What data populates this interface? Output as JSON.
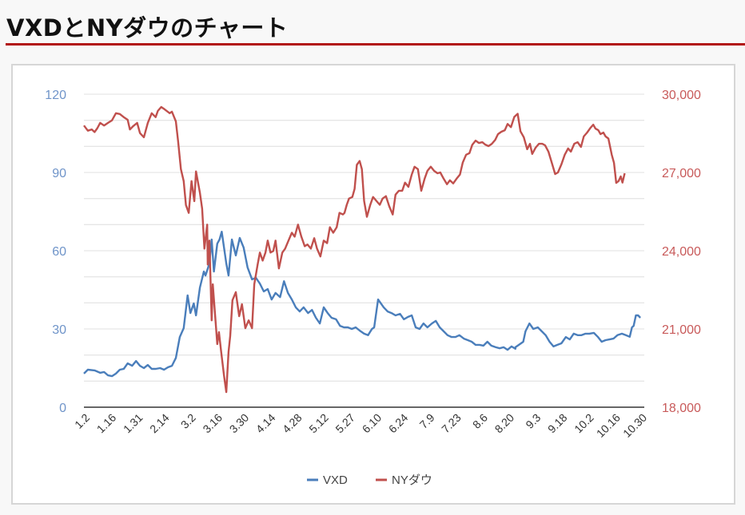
{
  "page": {
    "title": "VXDとNYダウのチャート",
    "accent_color": "#b21414"
  },
  "chart_data": {
    "type": "line",
    "title": "",
    "xlabel": "",
    "ylabel_left": "",
    "ylabel_right": "",
    "x_tick_labels": [
      "1.2",
      "1.16",
      "1.31",
      "2.14",
      "3.2",
      "3.16",
      "3.30",
      "4.14",
      "4.28",
      "5.12",
      "5.27",
      "6.10",
      "6.24",
      "7.9",
      "7.23",
      "8.6",
      "8.20",
      "9.3",
      "9.18",
      "10.2",
      "10.16",
      "10.30"
    ],
    "y_left": {
      "ticks": [
        0,
        30,
        60,
        90,
        120
      ],
      "labels": [
        "0",
        "30",
        "60",
        "90",
        "120"
      ],
      "range": [
        0,
        120
      ],
      "color": "#6f94c9"
    },
    "y_right": {
      "ticks": [
        18000,
        21000,
        24000,
        27000,
        30000
      ],
      "labels": [
        "18,000",
        "21,000",
        "24,000",
        "27,000",
        "30,000"
      ],
      "range": [
        18000,
        30000
      ],
      "color": "#c85a5a"
    },
    "grid": {
      "horizontal": true,
      "minor_step_left": 10,
      "color": "#e6e6e6"
    },
    "legend": {
      "position": "bottom",
      "entries": [
        "VXD",
        "NYダウ"
      ]
    },
    "series": [
      {
        "name": "VXD",
        "axis": "left",
        "color": "#4a7ebb",
        "x_frac": [
          0,
          0.007,
          0.019,
          0.029,
          0.036,
          0.043,
          0.05,
          0.057,
          0.064,
          0.071,
          0.078,
          0.086,
          0.093,
          0.1,
          0.107,
          0.114,
          0.121,
          0.128,
          0.136,
          0.143,
          0.15,
          0.157,
          0.164,
          0.171,
          0.178,
          0.185,
          0.19,
          0.19,
          0.196,
          0.2,
          0.207,
          0.214,
          0.217,
          0.224,
          0.228,
          0.232,
          0.238,
          0.242,
          0.246,
          0.254,
          0.258,
          0.264,
          0.271,
          0.278,
          0.285,
          0.292,
          0.3,
          0.307,
          0.314,
          0.321,
          0.328,
          0.335,
          0.342,
          0.35,
          0.357,
          0.364,
          0.371,
          0.378,
          0.385,
          0.392,
          0.4,
          0.407,
          0.414,
          0.421,
          0.428,
          0.435,
          0.442,
          0.45,
          0.457,
          0.464,
          0.471,
          0.478,
          0.485,
          0.492,
          0.5,
          0.507,
          0.514,
          0.518,
          0.525,
          0.535,
          0.542,
          0.549,
          0.556,
          0.564,
          0.571,
          0.578,
          0.585,
          0.592,
          0.599,
          0.606,
          0.613,
          0.621,
          0.628,
          0.635,
          0.642,
          0.649,
          0.656,
          0.663,
          0.67,
          0.678,
          0.685,
          0.692,
          0.699,
          0.706,
          0.713,
          0.72,
          0.727,
          0.735,
          0.742,
          0.749,
          0.756,
          0.763,
          0.77,
          0.77,
          0.78,
          0.784,
          0.788,
          0.795,
          0.802,
          0.81,
          0.817,
          0.824,
          0.831,
          0.838,
          0.845,
          0.852,
          0.86,
          0.867,
          0.874,
          0.881,
          0.888,
          0.895,
          0.902,
          0.91,
          0.917,
          0.924,
          0.931,
          0.938,
          0.945,
          0.952,
          0.96,
          0.967,
          0.974,
          0.978,
          0.981,
          0.985,
          0.989,
          0.993,
          1.0
        ],
        "values": [
          12.9,
          14.4,
          14.1,
          13.2,
          13.5,
          12.2,
          11.9,
          12.9,
          14.4,
          14.7,
          16.8,
          15.9,
          17.7,
          15.9,
          15.0,
          16.2,
          14.7,
          14.7,
          15.0,
          14.4,
          15.3,
          15.9,
          18.9,
          26.9,
          30.3,
          42.9,
          36.1,
          36.1,
          39.8,
          35.2,
          45.9,
          52.0,
          50.5,
          55.1,
          64.3,
          52.0,
          62.7,
          64.3,
          67.3,
          55.1,
          50.5,
          64.3,
          58.2,
          64.9,
          61.2,
          53.6,
          49.0,
          49.6,
          47.4,
          44.4,
          45.3,
          41.3,
          43.8,
          42.2,
          48.3,
          43.8,
          41.3,
          38.3,
          36.7,
          38.3,
          36.1,
          37.3,
          34.3,
          32.1,
          38.3,
          36.1,
          34.3,
          33.7,
          31.2,
          30.6,
          30.6,
          30.0,
          30.6,
          29.4,
          28.2,
          27.6,
          30.0,
          30.6,
          41.3,
          38.3,
          36.7,
          36.1,
          35.2,
          35.8,
          33.7,
          34.6,
          35.2,
          30.6,
          30.0,
          32.1,
          30.6,
          32.1,
          33.1,
          30.6,
          29.1,
          27.6,
          26.9,
          26.9,
          27.6,
          26.3,
          25.7,
          25.1,
          23.9,
          23.9,
          23.6,
          25.1,
          23.6,
          23.0,
          22.6,
          23.0,
          22.0,
          23.3,
          22.4,
          23.0,
          24.5,
          25.1,
          29.1,
          32.1,
          30.0,
          30.6,
          29.1,
          27.6,
          25.1,
          23.3,
          23.9,
          24.5,
          26.9,
          26.0,
          28.2,
          27.6,
          27.6,
          28.2,
          28.2,
          28.5,
          27.0,
          25.1,
          25.7,
          26.0,
          26.3,
          27.6,
          28.2,
          27.6,
          27.0,
          30.6,
          31.2,
          35.2,
          35.2,
          34.3
        ],
        "note": "values estimated from pixel positions; peaks ~67 in mid-March"
      },
      {
        "name": "NYダウ",
        "axis": "right",
        "color": "#c0504d",
        "x_frac": [
          0,
          0.007,
          0.014,
          0.019,
          0.024,
          0.029,
          0.036,
          0.043,
          0.05,
          0.057,
          0.064,
          0.071,
          0.078,
          0.082,
          0.088,
          0.095,
          0.1,
          0.107,
          0.114,
          0.121,
          0.128,
          0.132,
          0.138,
          0.144,
          0.153,
          0.157,
          0.164,
          0.168,
          0.173,
          0.178,
          0.182,
          0.187,
          0.192,
          0.197,
          0.2,
          0.207,
          0.211,
          0.215,
          0.22,
          0.221,
          0.224,
          0.228,
          0.23,
          0.238,
          0.241,
          0.245,
          0.25,
          0.254,
          0.258,
          0.261,
          0.265,
          0.271,
          0.277,
          0.282,
          0.288,
          0.294,
          0.3,
          0.304,
          0.31,
          0.314,
          0.319,
          0.324,
          0.328,
          0.333,
          0.338,
          0.342,
          0.348,
          0.354,
          0.359,
          0.365,
          0.371,
          0.376,
          0.382,
          0.388,
          0.394,
          0.399,
          0.405,
          0.411,
          0.416,
          0.422,
          0.428,
          0.434,
          0.439,
          0.445,
          0.451,
          0.456,
          0.462,
          0.465,
          0.469,
          0.473,
          0.479,
          0.483,
          0.487,
          0.492,
          0.496,
          0.5,
          0.505,
          0.511,
          0.516,
          0.522,
          0.528,
          0.533,
          0.539,
          0.545,
          0.551,
          0.556,
          0.562,
          0.568,
          0.573,
          0.579,
          0.585,
          0.59,
          0.596,
          0.602,
          0.608,
          0.613,
          0.619,
          0.625,
          0.631,
          0.636,
          0.642,
          0.648,
          0.653,
          0.659,
          0.665,
          0.671,
          0.676,
          0.682,
          0.688,
          0.693,
          0.699,
          0.705,
          0.711,
          0.716,
          0.722,
          0.728,
          0.734,
          0.739,
          0.745,
          0.751,
          0.756,
          0.762,
          0.768,
          0.774,
          0.779,
          0.785,
          0.791,
          0.796,
          0.8,
          0.806,
          0.812,
          0.818,
          0.823,
          0.829,
          0.835,
          0.841,
          0.846,
          0.852,
          0.858,
          0.864,
          0.869,
          0.875,
          0.881,
          0.887,
          0.892,
          0.898,
          0.904,
          0.909,
          0.913,
          0.918,
          0.922,
          0.927,
          0.931,
          0.936,
          0.942,
          0.946,
          0.95,
          0.954,
          0.958,
          0.961,
          0.965,
          0.968,
          0.972,
          0.976,
          0.979,
          0.983,
          0.988,
          0.991,
          0.995,
          1.0
        ],
        "values": [
          28800,
          28600,
          28650,
          28550,
          28700,
          28900,
          28800,
          28900,
          29000,
          29270,
          29240,
          29120,
          29020,
          28650,
          28780,
          28900,
          28510,
          28350,
          28900,
          29270,
          29120,
          29360,
          29510,
          29420,
          29270,
          29330,
          28960,
          28200,
          27130,
          26670,
          25750,
          25450,
          26670,
          25900,
          27040,
          26220,
          25610,
          24080,
          25000,
          23470,
          24390,
          21330,
          22710,
          20420,
          20880,
          20120,
          19200,
          18580,
          20120,
          20730,
          22100,
          22410,
          21490,
          21950,
          21030,
          21330,
          21030,
          22710,
          23470,
          23930,
          23620,
          23930,
          24390,
          23930,
          23990,
          24390,
          23320,
          23930,
          24080,
          24390,
          24690,
          24540,
          25000,
          24540,
          24170,
          24240,
          24080,
          24480,
          24080,
          23780,
          24390,
          24290,
          24900,
          24690,
          24900,
          25450,
          25390,
          25450,
          25760,
          26000,
          26060,
          26370,
          27290,
          27440,
          27130,
          25910,
          25300,
          25760,
          26060,
          25910,
          25760,
          26000,
          26090,
          25700,
          25390,
          26150,
          26300,
          26300,
          26610,
          26450,
          26920,
          27220,
          27130,
          26300,
          26760,
          27060,
          27220,
          27060,
          26970,
          27000,
          26760,
          26550,
          26700,
          26580,
          26760,
          26920,
          27380,
          27680,
          27740,
          28060,
          28220,
          28130,
          28160,
          28070,
          28010,
          28100,
          28250,
          28470,
          28560,
          28620,
          28860,
          28740,
          29130,
          29250,
          28580,
          28350,
          27890,
          28100,
          27710,
          27950,
          28100,
          28100,
          28040,
          27800,
          27370,
          26940,
          27000,
          27310,
          27680,
          27920,
          27800,
          28100,
          28160,
          27980,
          28380,
          28530,
          28710,
          28830,
          28680,
          28620,
          28470,
          28530,
          28380,
          28300,
          27680,
          27370,
          26600,
          26670,
          26850,
          26610,
          26970
        ],
        "note": "values estimated from pixel positions; trough ~18,600 late March"
      }
    ]
  }
}
